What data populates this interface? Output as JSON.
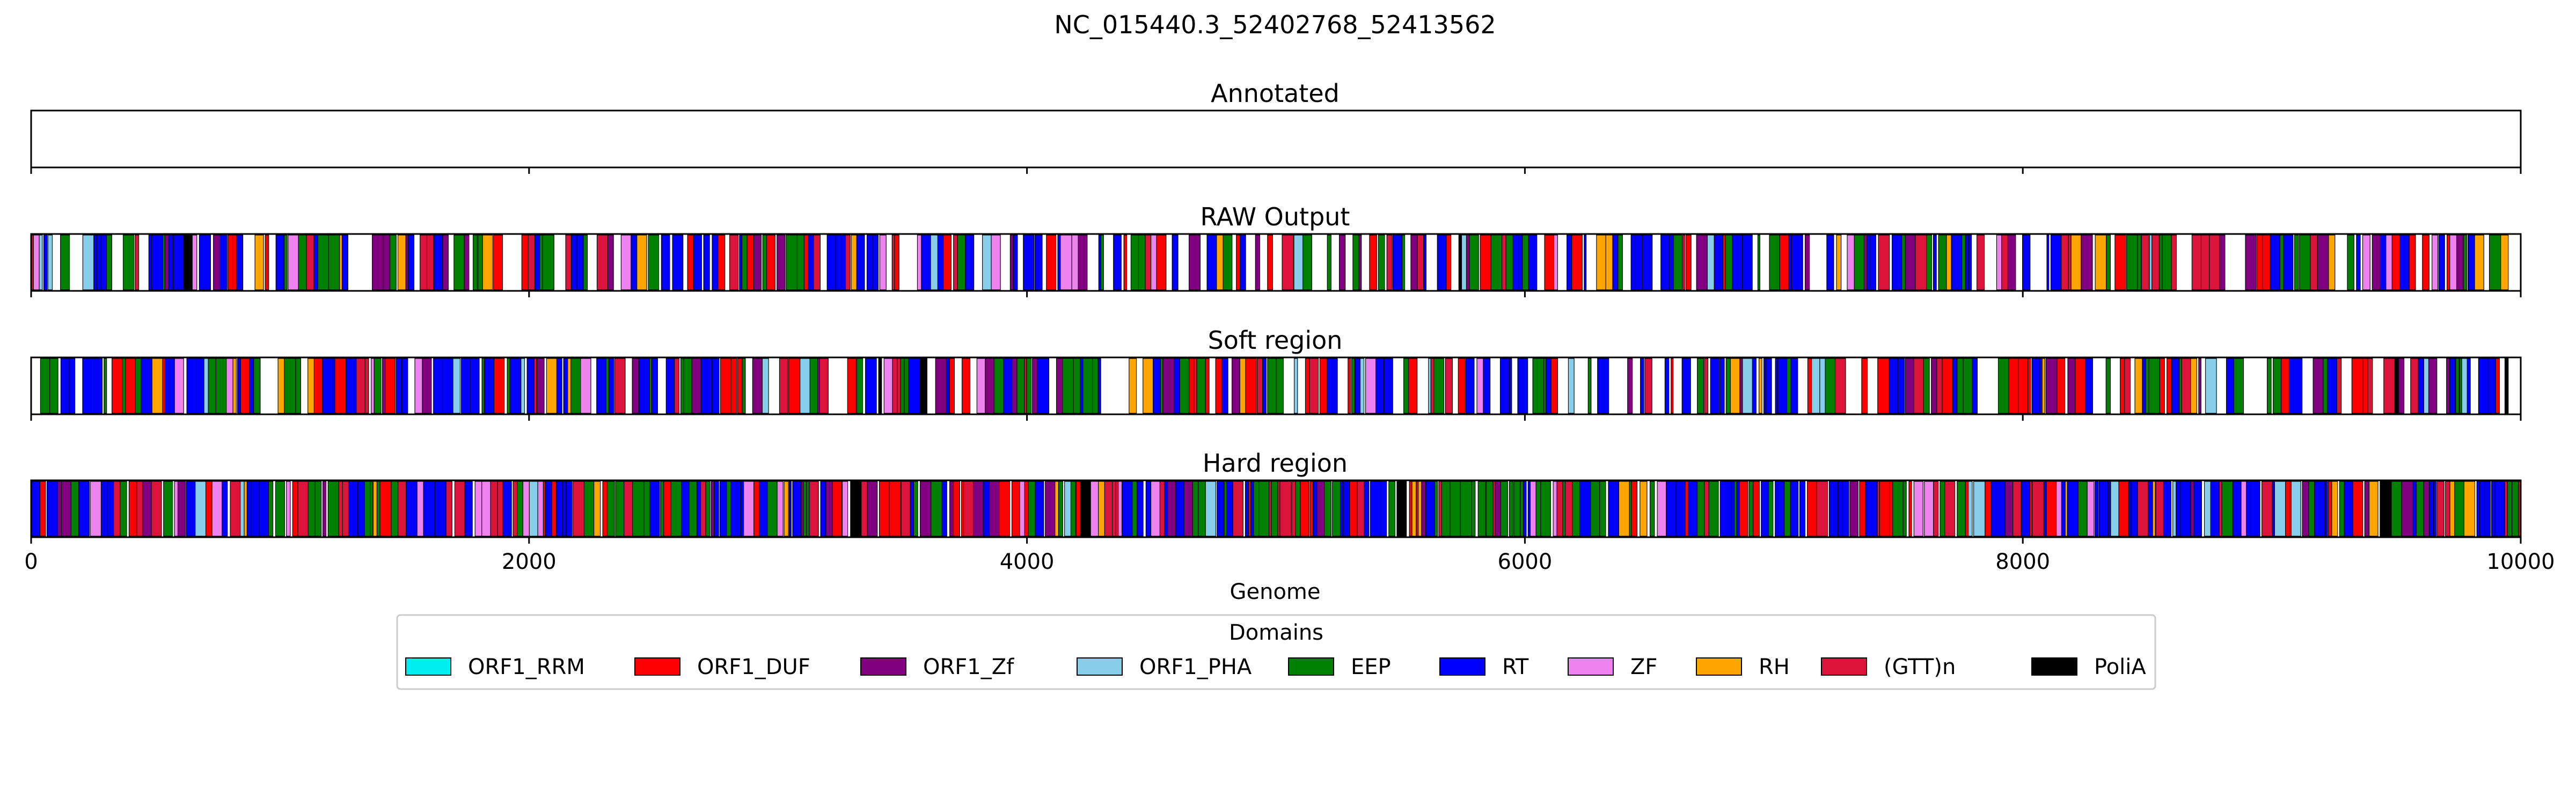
{
  "title": "NC_015440.3_52402768_52413562",
  "chart_data": {
    "type": "track",
    "title": "NC_015440.3_52402768_52413562",
    "xlabel": "Genome",
    "xlim": [
      0,
      10000
    ],
    "xticks": [
      0,
      2000,
      4000,
      6000,
      8000,
      10000
    ],
    "xtick_labels": [
      "0",
      "2000",
      "4000",
      "6000",
      "8000",
      "10000"
    ],
    "panels": [
      {
        "title": "Annotated",
        "segments": []
      },
      {
        "title": "RAW Output",
        "segment_span": [
          0,
          9950
        ],
        "segments": "dense"
      },
      {
        "title": "Soft region",
        "segment_span": [
          0,
          9950
        ],
        "segments": "dense"
      },
      {
        "title": "Hard region",
        "segment_span": [
          0,
          10000
        ],
        "segments": "dense"
      }
    ],
    "legend": {
      "title": "Domains",
      "placement": "lower-center",
      "entries": [
        {
          "label": "ORF1_RRM",
          "color": "#00eeee"
        },
        {
          "label": "ORF1_DUF",
          "color": "#ff0000"
        },
        {
          "label": "ORF1_Zf",
          "color": "#800080"
        },
        {
          "label": "ORF1_PHA",
          "color": "#87ceeb"
        },
        {
          "label": "EEP",
          "color": "#008000"
        },
        {
          "label": "RT",
          "color": "#0000ff"
        },
        {
          "label": "ZF",
          "color": "#ee82ee"
        },
        {
          "label": "RH",
          "color": "#ffa500"
        },
        {
          "label": "(GTT)n",
          "color": "#dc143c"
        },
        {
          "label": "PoliA",
          "color": "#000000"
        }
      ]
    }
  }
}
